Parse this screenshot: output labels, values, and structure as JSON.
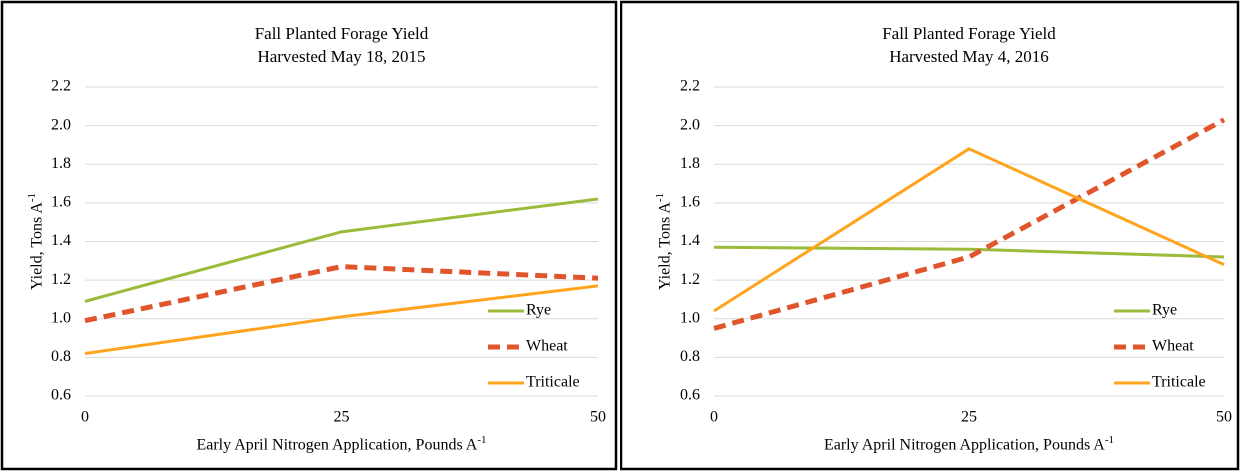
{
  "chart_data": [
    {
      "type": "line",
      "title": "Fall Planted Forage Yield",
      "subtitle": "Harvested May 18, 2015",
      "xlabel": "Early April Nitrogen Application, Pounds A",
      "xlabel_superscript": "-1",
      "ylabel": "Yield, Tons A",
      "ylabel_superscript": "-1",
      "x": [
        0,
        25,
        50
      ],
      "xlim": [
        0,
        50
      ],
      "xticks": [
        0,
        25,
        50
      ],
      "ylim": [
        0.6,
        2.2
      ],
      "yticks": [
        0.6,
        0.8,
        {
          "value": 1,
          "label": "1.0"
        },
        1.2,
        1.4,
        1.6,
        1.8,
        {
          "value": 2,
          "label": "2.0"
        },
        2.2
      ],
      "grid": true,
      "legend": "lower right",
      "series": [
        {
          "name": "Rye",
          "color": "#9bbb3b",
          "dashed": false,
          "values": [
            1.09,
            1.45,
            1.62
          ]
        },
        {
          "name": "Wheat",
          "color": "#e0552b",
          "dashed": true,
          "values": [
            0.99,
            1.27,
            1.21
          ]
        },
        {
          "name": "Triticale",
          "color": "#ffa41c",
          "dashed": false,
          "values": [
            0.82,
            1.01,
            1.17
          ]
        }
      ]
    },
    {
      "type": "line",
      "title": "Fall Planted Forage Yield",
      "subtitle": "Harvested May 4, 2016",
      "xlabel": "Early April Nitrogen Application, Pounds A",
      "xlabel_superscript": "-1",
      "ylabel": "Yield, Tons A",
      "ylabel_superscript": "-1",
      "x": [
        0,
        25,
        50
      ],
      "xlim": [
        0,
        50
      ],
      "xticks": [
        0,
        25,
        50
      ],
      "ylim": [
        0.6,
        2.2
      ],
      "yticks": [
        0.6,
        0.8,
        {
          "value": 1,
          "label": "1.0"
        },
        1.2,
        1.4,
        1.6,
        1.8,
        {
          "value": 2,
          "label": "2.0"
        },
        2.2
      ],
      "grid": true,
      "legend": "lower right",
      "series": [
        {
          "name": "Rye",
          "color": "#9bbb3b",
          "dashed": false,
          "values": [
            1.37,
            1.36,
            1.32
          ]
        },
        {
          "name": "Wheat",
          "color": "#e0552b",
          "dashed": true,
          "values": [
            0.95,
            1.32,
            2.03
          ]
        },
        {
          "name": "Triticale",
          "color": "#ffa41c",
          "dashed": false,
          "values": [
            1.04,
            1.88,
            1.28
          ]
        }
      ]
    }
  ]
}
